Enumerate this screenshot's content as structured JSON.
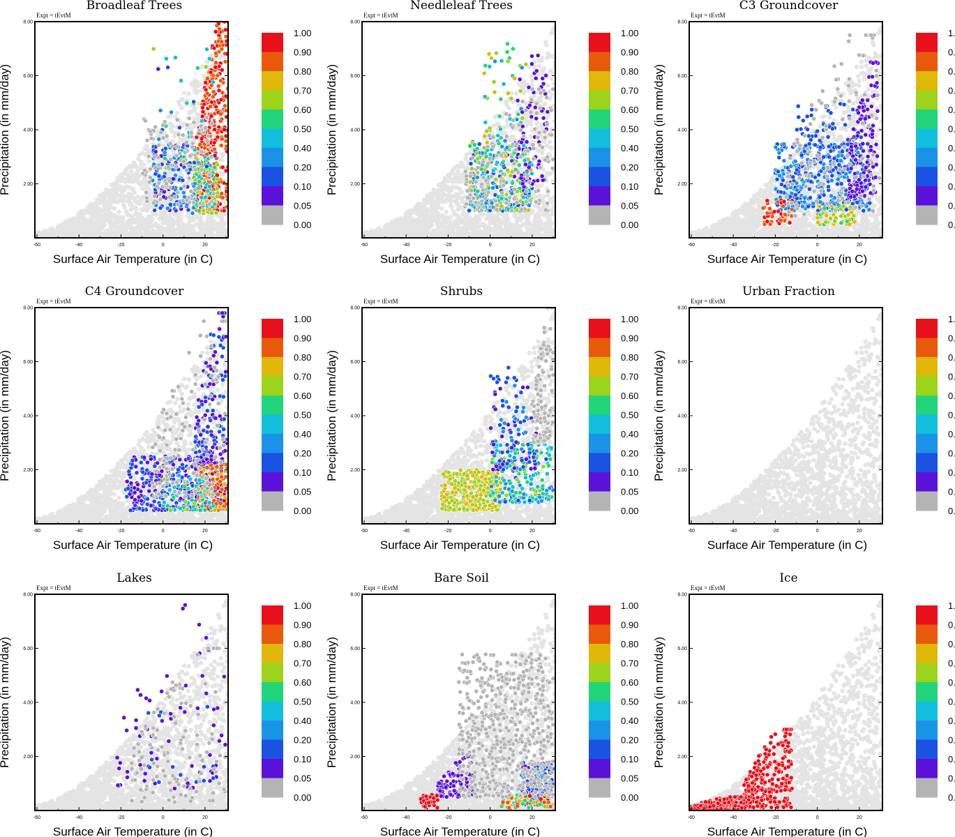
{
  "figure": {
    "expt_label": "Expt = tEvtM",
    "xlabel": "Surface Air Temperature (in C)",
    "ylabel": "Precipitation (in mm/day)",
    "x_ticks": [
      "-60",
      "-40",
      "-20",
      "0",
      "20"
    ],
    "x_tick_values": [
      -60,
      -40,
      -20,
      0,
      20
    ],
    "y_ticks": [
      "2.00",
      "4.00",
      "6.00",
      "8.00"
    ],
    "y_tick_values": [
      2,
      4,
      6,
      8
    ],
    "xlim": [
      -61,
      31
    ],
    "ylim": [
      0,
      8
    ],
    "colorbar": {
      "labels": [
        "1.00",
        "0.90",
        "0.80",
        "0.70",
        "0.60",
        "0.50",
        "0.40",
        "0.20",
        "0.10",
        "0.05",
        "0.00"
      ],
      "colors": [
        "#e8101a",
        "#e85a0a",
        "#dfb80a",
        "#9bd41a",
        "#22d47a",
        "#12bfdc",
        "#1a92e8",
        "#1a52e2",
        "#5a12d8",
        "#b4b4b4"
      ]
    },
    "background_color": "#e4e4e4",
    "zero_color": "#b4b4b4"
  },
  "chart_data": [
    {
      "type": "scatter",
      "title": "Broadleaf Trees",
      "xlabel": "Surface Air Temperature (in C)",
      "ylabel": "Precipitation (in mm/day)",
      "xlim": [
        -61,
        31
      ],
      "ylim": [
        0,
        8
      ],
      "clusters": [
        {
          "x": [
            15,
            31
          ],
          "y": [
            1.0,
            8.0
          ],
          "n": 420,
          "color_index": [
            0,
            1
          ],
          "trend": 0.28
        },
        {
          "x": [
            14,
            26
          ],
          "y": [
            0.9,
            3.0
          ],
          "n": 120,
          "color_index": [
            2,
            6
          ]
        },
        {
          "x": [
            -5,
            13
          ],
          "y": [
            1.0,
            3.5
          ],
          "n": 130,
          "color_index": [
            6,
            8
          ]
        },
        {
          "x": [
            -5,
            25
          ],
          "y": [
            2.5,
            7.5
          ],
          "n": 40,
          "color_index": [
            3,
            8
          ]
        },
        {
          "x": [
            -10,
            25
          ],
          "y": [
            1.2,
            4.5
          ],
          "n": 120,
          "color_index": [
            9,
            9
          ]
        }
      ]
    },
    {
      "type": "scatter",
      "title": "Needleleaf Trees",
      "xlabel": "Surface Air Temperature (in C)",
      "ylabel": "Precipitation (in mm/day)",
      "xlim": [
        -61,
        31
      ],
      "ylim": [
        0,
        8
      ],
      "clusters": [
        {
          "x": [
            -10,
            20
          ],
          "y": [
            1.0,
            3.6
          ],
          "n": 330,
          "color_index": [
            2,
            8
          ]
        },
        {
          "x": [
            -3,
            17
          ],
          "y": [
            3.0,
            7.2
          ],
          "n": 60,
          "color_index": [
            2,
            6
          ]
        },
        {
          "x": [
            13,
            28
          ],
          "y": [
            2.0,
            6.8
          ],
          "n": 60,
          "color_index": [
            8,
            8
          ]
        },
        {
          "x": [
            -12,
            30
          ],
          "y": [
            1.0,
            5.5
          ],
          "n": 150,
          "color_index": [
            9,
            9
          ],
          "trend": 0.12
        }
      ]
    },
    {
      "type": "scatter",
      "title": "C3 Groundcover",
      "xlabel": "Surface Air Temperature (in C)",
      "ylabel": "Precipitation (in mm/day)",
      "xlim": [
        -61,
        31
      ],
      "ylim": [
        0,
        8
      ],
      "clusters": [
        {
          "x": [
            -20,
            25
          ],
          "y": [
            1.0,
            3.5
          ],
          "n": 420,
          "color_index": [
            6,
            7
          ]
        },
        {
          "x": [
            -10,
            22
          ],
          "y": [
            2.5,
            5.0
          ],
          "n": 80,
          "color_index": [
            7,
            7
          ]
        },
        {
          "x": [
            15,
            29
          ],
          "y": [
            1.5,
            6.5
          ],
          "n": 140,
          "color_index": [
            8,
            8
          ],
          "trend": 0.2
        },
        {
          "x": [
            -26,
            -12
          ],
          "y": [
            0.5,
            1.4
          ],
          "n": 50,
          "color_index": [
            0,
            1
          ]
        },
        {
          "x": [
            0,
            18
          ],
          "y": [
            0.5,
            1.2
          ],
          "n": 60,
          "color_index": [
            2,
            4
          ]
        },
        {
          "x": [
            -15,
            30
          ],
          "y": [
            0.8,
            7.5
          ],
          "n": 120,
          "color_index": [
            9,
            9
          ],
          "trend": 0.2
        }
      ]
    },
    {
      "type": "scatter",
      "title": "C4 Groundcover",
      "xlabel": "Surface Air Temperature (in C)",
      "ylabel": "Precipitation (in mm/day)",
      "xlim": [
        -61,
        31
      ],
      "ylim": [
        0,
        8
      ],
      "clusters": [
        {
          "x": [
            -18,
            30
          ],
          "y": [
            0.5,
            2.5
          ],
          "n": 360,
          "color_index": [
            7,
            8
          ]
        },
        {
          "x": [
            15,
            30
          ],
          "y": [
            2.0,
            7.8
          ],
          "n": 180,
          "color_index": [
            7,
            8
          ],
          "trend": 0.3
        },
        {
          "x": [
            17,
            31
          ],
          "y": [
            0.5,
            2.2
          ],
          "n": 150,
          "color_index": [
            0,
            2
          ]
        },
        {
          "x": [
            0,
            25
          ],
          "y": [
            0.5,
            1.8
          ],
          "n": 70,
          "color_index": [
            3,
            6
          ]
        },
        {
          "x": [
            -5,
            30
          ],
          "y": [
            1.0,
            7.5
          ],
          "n": 140,
          "color_index": [
            9,
            9
          ],
          "trend": 0.15
        }
      ]
    },
    {
      "type": "scatter",
      "title": "Shrubs",
      "xlabel": "Surface Air Temperature (in C)",
      "ylabel": "Precipitation (in mm/day)",
      "xlim": [
        -61,
        31
      ],
      "ylim": [
        0,
        8
      ],
      "clusters": [
        {
          "x": [
            -23,
            5
          ],
          "y": [
            0.5,
            2.0
          ],
          "n": 330,
          "color_index": [
            2,
            3
          ]
        },
        {
          "x": [
            0,
            30
          ],
          "y": [
            0.8,
            3.0
          ],
          "n": 200,
          "color_index": [
            3,
            7
          ]
        },
        {
          "x": [
            0,
            22
          ],
          "y": [
            2.0,
            5.8
          ],
          "n": 110,
          "color_index": [
            6,
            8
          ]
        },
        {
          "x": [
            20,
            30
          ],
          "y": [
            3.0,
            8.0
          ],
          "n": 120,
          "color_index": [
            9,
            9
          ],
          "trend": 0.2
        }
      ]
    },
    {
      "type": "scatter",
      "title": "Urban Fraction",
      "xlabel": "Surface Air Temperature (in C)",
      "ylabel": "Precipitation (in mm/day)",
      "xlim": [
        -61,
        31
      ],
      "ylim": [
        0,
        8
      ],
      "clusters": []
    },
    {
      "type": "scatter",
      "title": "Lakes",
      "xlabel": "Surface Air Temperature (in C)",
      "ylabel": "Precipitation (in mm/day)",
      "xlim": [
        -61,
        31
      ],
      "ylim": [
        0,
        8
      ],
      "clusters": [
        {
          "x": [
            -22,
            30
          ],
          "y": [
            0.8,
            7.8
          ],
          "n": 70,
          "color_index": [
            8,
            8
          ],
          "trend": 0.12
        },
        {
          "x": [
            -10,
            25
          ],
          "y": [
            1.0,
            4.0
          ],
          "n": 15,
          "color_index": [
            7,
            7
          ]
        },
        {
          "x": [
            -15,
            30
          ],
          "y": [
            0.3,
            6.0
          ],
          "n": 120,
          "color_index": [
            9,
            9
          ],
          "trend": 0.1
        }
      ]
    },
    {
      "type": "scatter",
      "title": "Bare Soil",
      "xlabel": "Surface Air Temperature (in C)",
      "ylabel": "Precipitation (in mm/day)",
      "xlim": [
        -61,
        31
      ],
      "ylim": [
        0,
        8
      ],
      "clusters": [
        {
          "x": [
            -25,
            -8
          ],
          "y": [
            0.5,
            2.0
          ],
          "n": 90,
          "color_index": [
            8,
            8
          ],
          "trend": 0.08
        },
        {
          "x": [
            -33,
            -25
          ],
          "y": [
            0.1,
            0.6
          ],
          "n": 30,
          "color_index": [
            0,
            0
          ]
        },
        {
          "x": [
            15,
            30
          ],
          "y": [
            0.2,
            1.8
          ],
          "n": 160,
          "color_index": [
            6,
            8
          ]
        },
        {
          "x": [
            5,
            30
          ],
          "y": [
            0.1,
            0.6
          ],
          "n": 80,
          "color_index": [
            0,
            5
          ]
        },
        {
          "x": [
            -15,
            30
          ],
          "y": [
            0.5,
            5.8
          ],
          "n": 600,
          "color_index": [
            9,
            9
          ]
        }
      ]
    },
    {
      "type": "scatter",
      "title": "Ice",
      "xlabel": "Surface Air Temperature (in C)",
      "ylabel": "Precipitation (in mm/day)",
      "xlim": [
        -61,
        31
      ],
      "ylim": [
        0,
        8
      ],
      "clusters": [
        {
          "x": [
            -35,
            -12
          ],
          "y": [
            0.1,
            3.0
          ],
          "n": 260,
          "color_index": [
            0,
            0
          ],
          "trend": 0.12
        },
        {
          "x": [
            -61,
            -35
          ],
          "y": [
            0.0,
            0.5
          ],
          "n": 140,
          "color_index": [
            0,
            0
          ],
          "trend": 0.02
        }
      ]
    }
  ]
}
